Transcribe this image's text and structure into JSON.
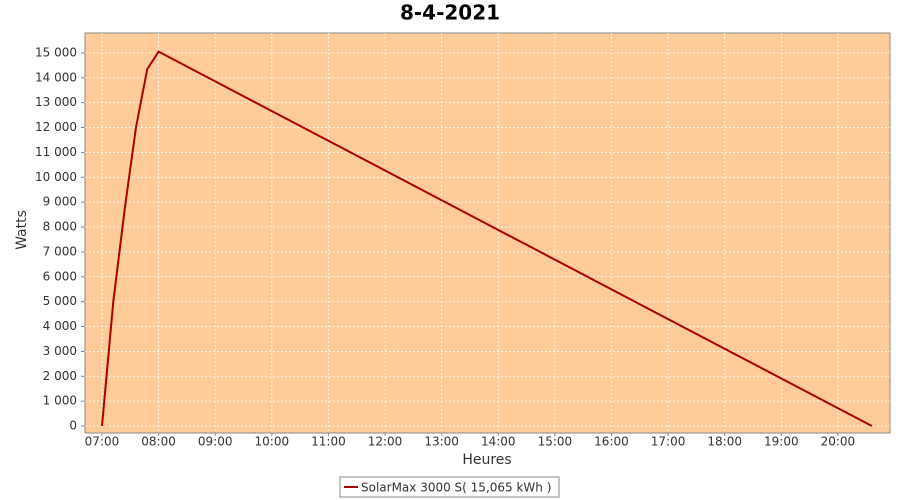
{
  "chart_data": {
    "type": "line",
    "title": "8-4-2021",
    "x_label": "Heures",
    "y_label": "Watts",
    "x": [
      7.0,
      7.2,
      7.4,
      7.6,
      7.8,
      8.0,
      20.6
    ],
    "series": [
      {
        "name": "SolarMax 3000 S( 15,065 kWh )",
        "color": "#aa0000",
        "values": [
          0,
          5000,
          8700,
          12000,
          14350,
          15050,
          0
        ]
      }
    ],
    "xlim": [
      6.7,
      20.92
    ],
    "xticks": [
      {
        "value": 7,
        "label": "07:00"
      },
      {
        "value": 8,
        "label": "08:00"
      },
      {
        "value": 9,
        "label": "09:00"
      },
      {
        "value": 10,
        "label": "10:00"
      },
      {
        "value": 11,
        "label": "11:00"
      },
      {
        "value": 12,
        "label": "12:00"
      },
      {
        "value": 13,
        "label": "13:00"
      },
      {
        "value": 14,
        "label": "14:00"
      },
      {
        "value": 15,
        "label": "15:00"
      },
      {
        "value": 16,
        "label": "16:00"
      },
      {
        "value": 17,
        "label": "17:00"
      },
      {
        "value": 18,
        "label": "18:00"
      },
      {
        "value": 19,
        "label": "19:00"
      },
      {
        "value": 20,
        "label": "20:00"
      }
    ],
    "ylim": [
      -280,
      15800
    ],
    "yticks": [
      0,
      {
        "value": 1000,
        "label": "1 000"
      },
      {
        "value": 2000,
        "label": "2 000"
      },
      {
        "value": 3000,
        "label": "3 000"
      },
      {
        "value": 4000,
        "label": "4 000"
      },
      {
        "value": 5000,
        "label": "5 000"
      },
      {
        "value": 6000,
        "label": "6 000"
      },
      {
        "value": 7000,
        "label": "7 000"
      },
      {
        "value": 8000,
        "label": "8 000"
      },
      {
        "value": 9000,
        "label": "9 000"
      },
      {
        "value": 10000,
        "label": "10 000"
      },
      {
        "value": 11000,
        "label": "11 000"
      },
      {
        "value": 12000,
        "label": "12 000"
      },
      {
        "value": 13000,
        "label": "13 000"
      },
      {
        "value": 14000,
        "label": "14 000"
      },
      {
        "value": 15000,
        "label": "15 000"
      }
    ],
    "grid": true,
    "plot_background": "#ffcc99",
    "legend": "bottom"
  }
}
